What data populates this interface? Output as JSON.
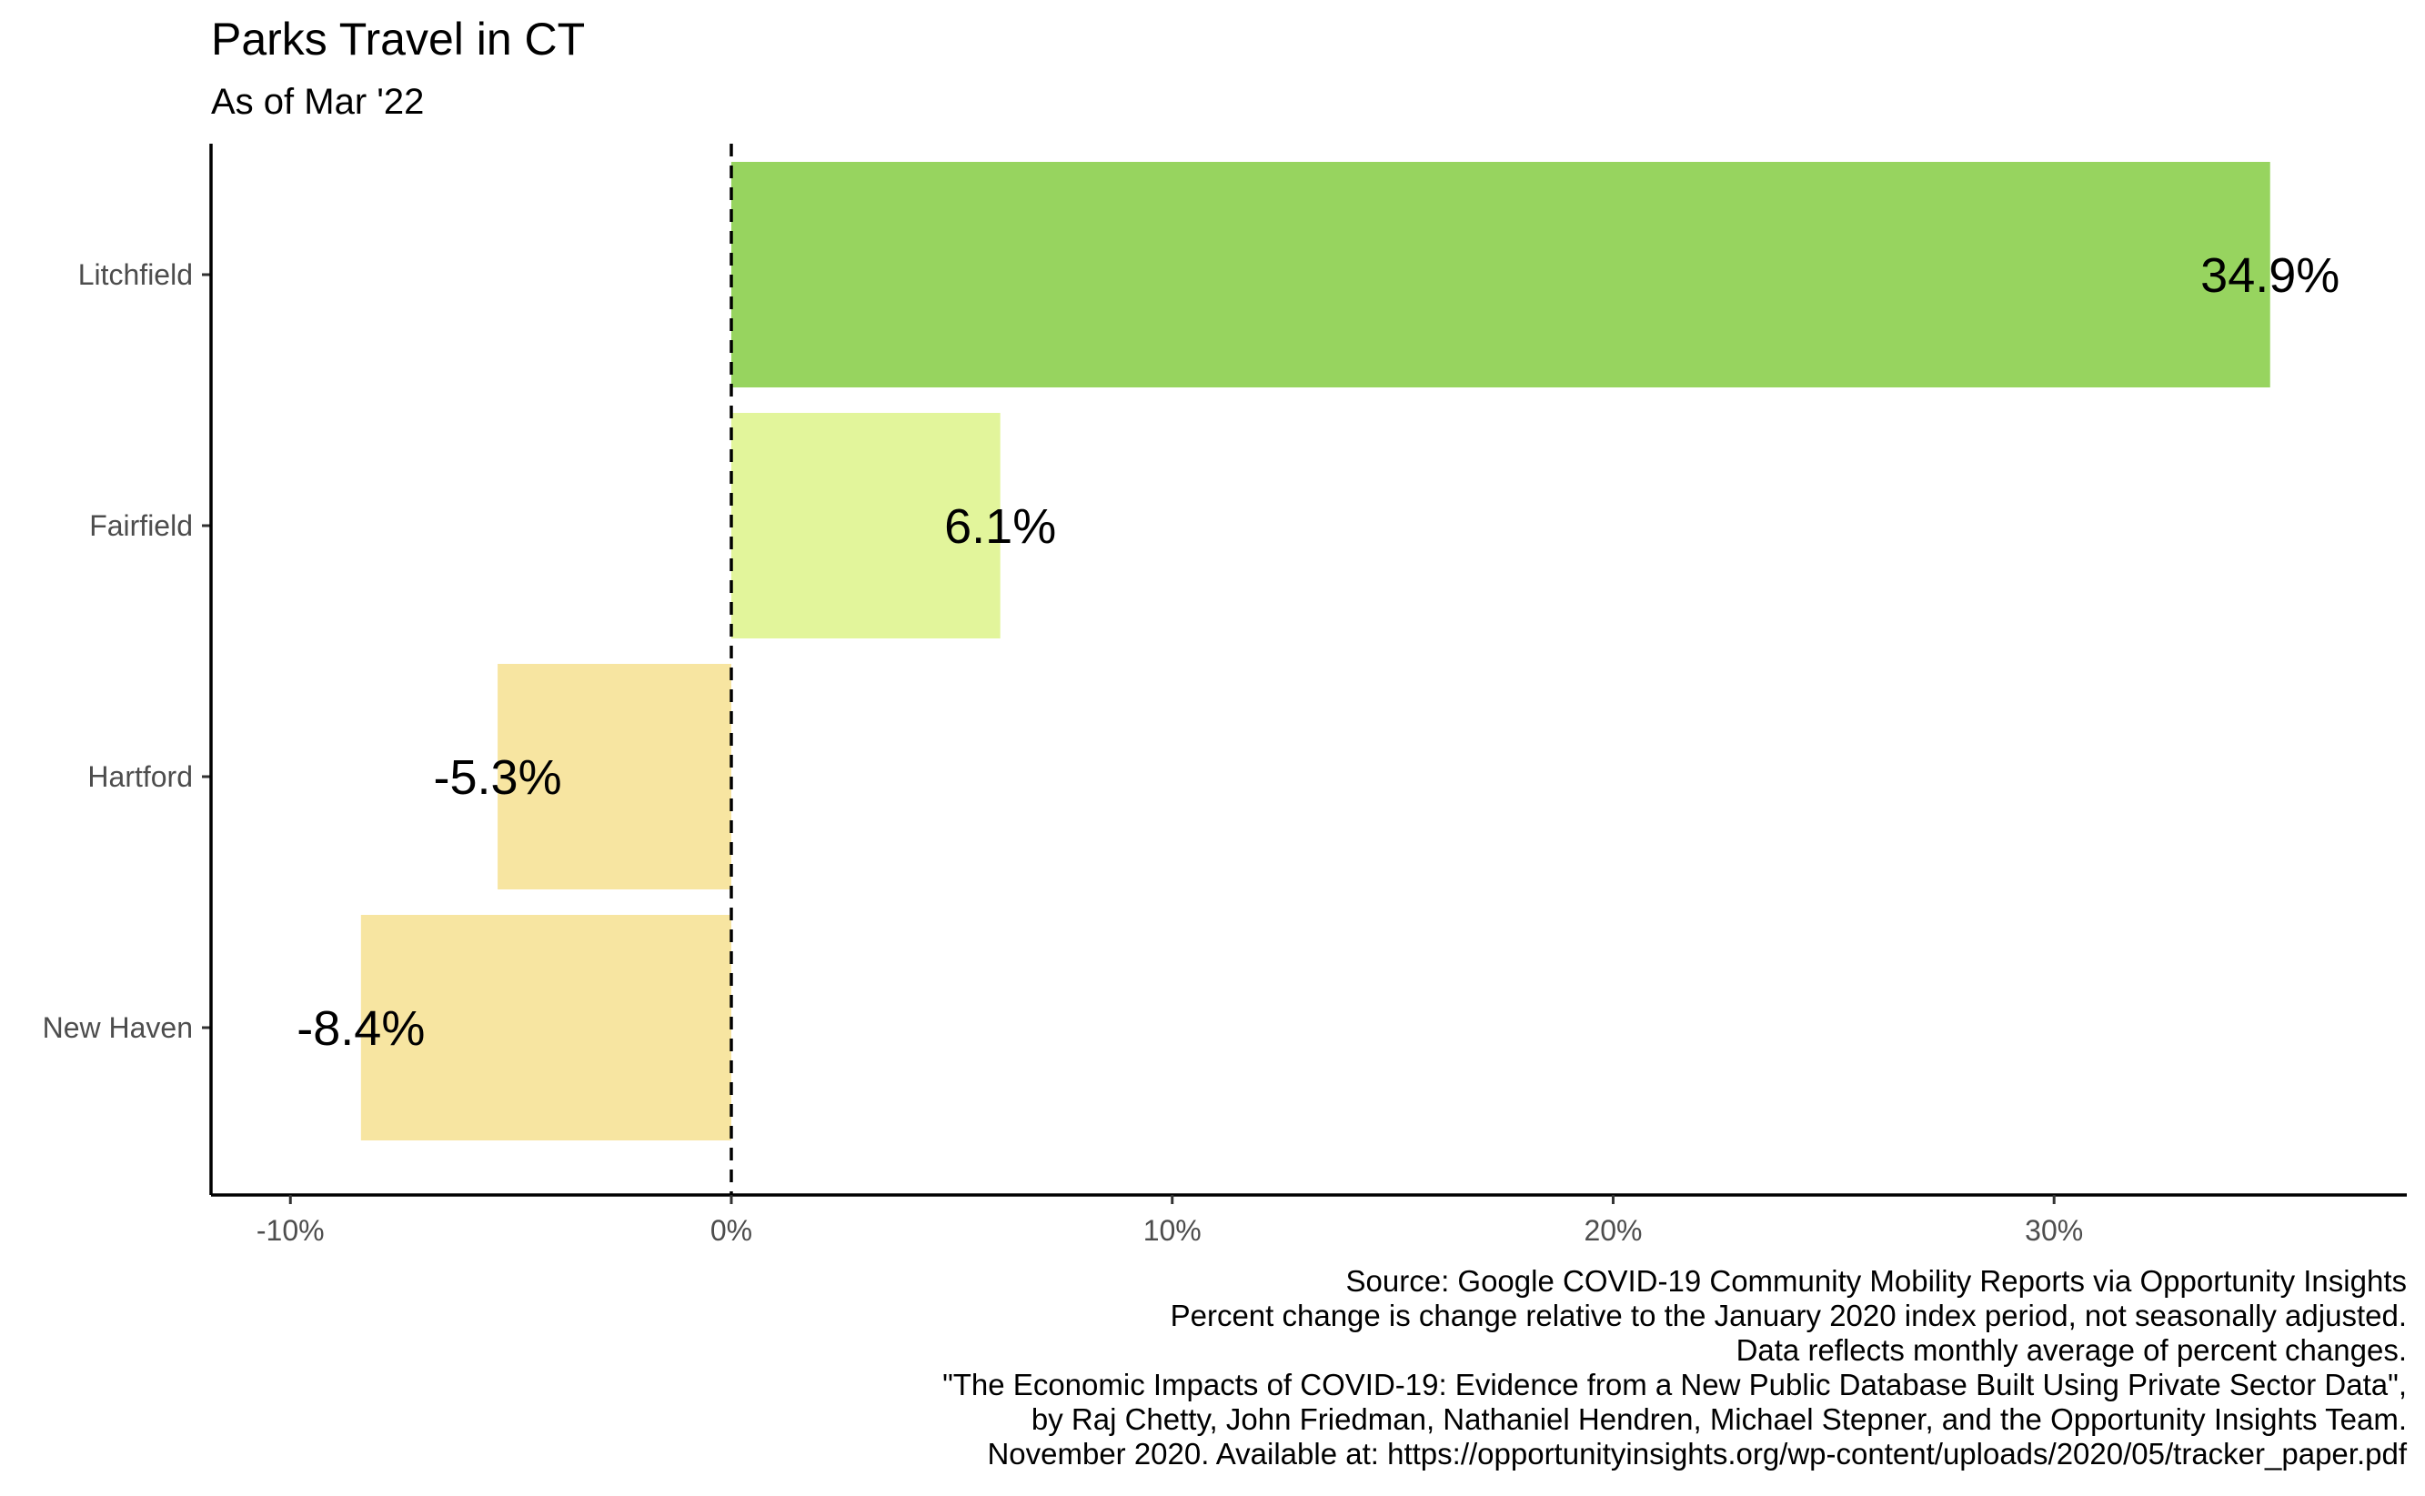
{
  "chart_data": {
    "type": "bar",
    "orientation": "horizontal",
    "title": "Parks Travel in CT",
    "subtitle": "As of Mar '22",
    "categories": [
      "Litchfield",
      "Fairfield",
      "Hartford",
      "New Haven"
    ],
    "values": [
      34.9,
      6.1,
      -5.3,
      -8.4
    ],
    "value_labels": [
      "34.9%",
      "6.1%",
      "-5.3%",
      "-8.4%"
    ],
    "colors": [
      "#97d45f",
      "#e2f59b",
      "#f7e5a1",
      "#f7e5a1"
    ],
    "xlim": [
      -11.8,
      38.0
    ],
    "x_ticks": [
      -10,
      0,
      10,
      20,
      30
    ],
    "x_tick_labels": [
      "-10%",
      "0%",
      "10%",
      "20%",
      "30%"
    ],
    "reference_line": 0,
    "grid": false,
    "xlabel": "",
    "ylabel": ""
  },
  "caption": {
    "lines": [
      "Source: Google COVID-19 Community Mobility Reports via Opportunity Insights",
      "Percent change is change relative to the January 2020 index period, not seasonally adjusted.",
      "Data reflects monthly average of percent changes.",
      "\"The Economic Impacts of COVID-19: Evidence from a New Public Database Built Using Private Sector Data\",",
      "by Raj Chetty, John Friedman, Nathaniel Hendren, Michael Stepner, and the Opportunity Insights Team.",
      "November 2020. Available at: https://opportunityinsights.org/wp-content/uploads/2020/05/tracker_paper.pdf"
    ]
  }
}
